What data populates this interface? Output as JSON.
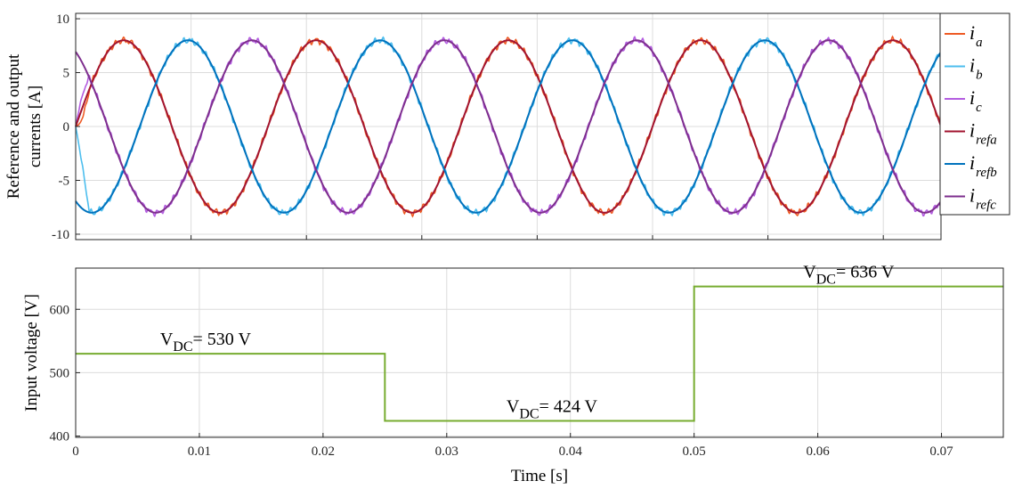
{
  "chart_data": [
    {
      "type": "line",
      "title": "",
      "xlabel": "",
      "ylabel_line1": "Reference and output",
      "ylabel_line2": "currents [A]",
      "xlim": [
        0,
        0.075
      ],
      "ylim": [
        -10.5,
        10.5
      ],
      "yticks": [
        -10,
        -5,
        0,
        5,
        10
      ],
      "ytick_labels": [
        "-10",
        "-5",
        "0",
        "5",
        "10"
      ],
      "xticks": [
        0,
        0.01,
        0.02,
        0.03,
        0.04,
        0.05,
        0.06,
        0.07
      ],
      "grid": true,
      "amplitude": 8,
      "frequency_hz": 60,
      "ripple_amplitude": 0.35,
      "legend_placement": "right",
      "series": [
        {
          "name": "i",
          "sub": "a",
          "color": "#ee5a24",
          "phase_deg": 0,
          "ripple": true,
          "start_value": 0
        },
        {
          "name": "i",
          "sub": "b",
          "color": "#4dbeee",
          "phase_deg": -120,
          "ripple": true,
          "start_value": 0
        },
        {
          "name": "i",
          "sub": "c",
          "color": "#b35ce0",
          "phase_deg": 120,
          "ripple": true,
          "start_value": 0
        },
        {
          "name": "i",
          "sub": "refa",
          "color": "#a2142f",
          "phase_deg": 0,
          "ripple": false
        },
        {
          "name": "i",
          "sub": "refb",
          "color": "#0072bd",
          "phase_deg": -120,
          "ripple": false
        },
        {
          "name": "i",
          "sub": "refc",
          "color": "#7e2f8e",
          "phase_deg": 120,
          "ripple": false
        }
      ]
    },
    {
      "type": "line",
      "title": "",
      "xlabel": "Time [s]",
      "ylabel": "Input voltage [V]",
      "xlim": [
        0,
        0.075
      ],
      "ylim": [
        398,
        665
      ],
      "yticks": [
        400,
        500,
        600
      ],
      "ytick_labels": [
        "400",
        "500",
        "600"
      ],
      "xticks": [
        0,
        0.01,
        0.02,
        0.03,
        0.04,
        0.05,
        0.06,
        0.07
      ],
      "xtick_labels": [
        "0",
        "0.01",
        "0.02",
        "0.03",
        "0.04",
        "0.05",
        "0.06",
        "0.07"
      ],
      "grid": true,
      "series": [
        {
          "name": "V_DC",
          "color": "#77ac30",
          "x": [
            0,
            0.025,
            0.025,
            0.05,
            0.05,
            0.075
          ],
          "y": [
            530,
            530,
            424,
            424,
            636,
            636
          ]
        }
      ],
      "annotations": [
        {
          "main": "V",
          "sub": "DC",
          "text": "= 530 V",
          "x": 0.0105,
          "y": 544
        },
        {
          "main": "V",
          "sub": "DC",
          "text": "= 424 V",
          "x": 0.0385,
          "y": 438
        },
        {
          "main": "V",
          "sub": "DC",
          "text": "= 636 V",
          "x": 0.0625,
          "y": 650
        }
      ]
    }
  ]
}
